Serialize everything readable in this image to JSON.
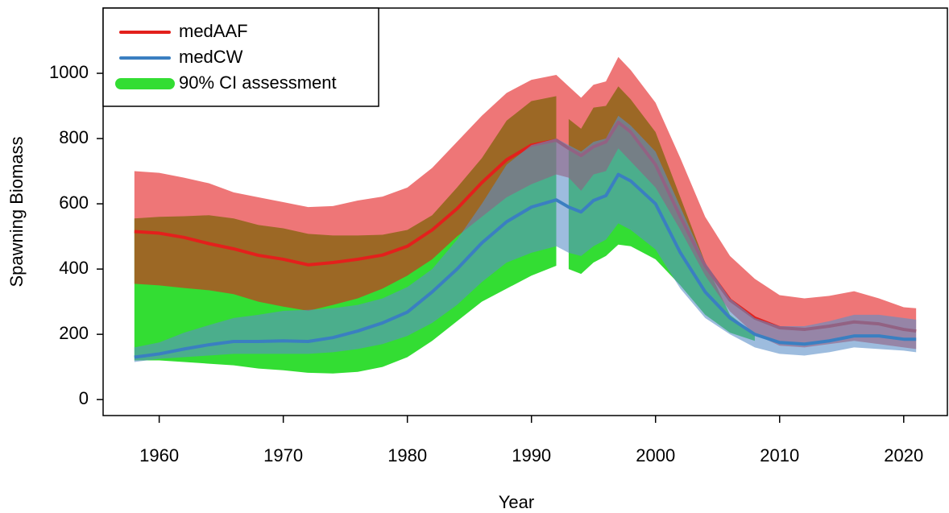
{
  "chart_data": {
    "type": "line",
    "xlabel": "Year",
    "ylabel": "Spawning Biomass",
    "x": [
      1958,
      1960,
      1962,
      1964,
      1966,
      1968,
      1970,
      1972,
      1974,
      1976,
      1978,
      1980,
      1982,
      1984,
      1986,
      1988,
      1990,
      1992,
      1993,
      1994,
      1995,
      1996,
      1997,
      1998,
      2000,
      2002,
      2004,
      2006,
      2008,
      2010,
      2012,
      2014,
      2016,
      2018,
      2020,
      2021
    ],
    "xlim": [
      1955.48,
      2023.52
    ],
    "xticks": [
      1960,
      1970,
      1980,
      1990,
      2000,
      2010,
      2020
    ],
    "ylim": [
      -49,
      1200
    ],
    "yticks": [
      0,
      200,
      400,
      600,
      800,
      1000
    ],
    "legend": "top-left",
    "series": [
      {
        "name": "medAAF",
        "color": "#e3201c",
        "band_color": "#e31a1c",
        "band_opacity": 0.6,
        "values": [
          515,
          510,
          497,
          478,
          462,
          442,
          430,
          413,
          420,
          430,
          443,
          470,
          520,
          585,
          665,
          735,
          780,
          795,
          770,
          748,
          775,
          790,
          850,
          820,
          720,
          560,
          410,
          305,
          250,
          220,
          215,
          225,
          238,
          232,
          215,
          210
        ],
        "upper": [
          700,
          695,
          680,
          663,
          635,
          620,
          605,
          590,
          593,
          610,
          622,
          650,
          710,
          790,
          870,
          940,
          980,
          995,
          960,
          925,
          965,
          975,
          1050,
          1010,
          910,
          740,
          560,
          440,
          370,
          320,
          310,
          318,
          332,
          310,
          283,
          280
        ],
        "lower": [
          355,
          350,
          342,
          335,
          323,
          300,
          285,
          272,
          290,
          310,
          340,
          380,
          430,
          500,
          560,
          620,
          660,
          690,
          680,
          640,
          690,
          700,
          770,
          730,
          650,
          520,
          380,
          270,
          200,
          165,
          160,
          170,
          180,
          170,
          160,
          155
        ]
      },
      {
        "name": "medCW",
        "color": "#3a7fc1",
        "band_color": "#5b8fc8",
        "band_opacity": 0.6,
        "values": [
          130,
          140,
          155,
          168,
          178,
          178,
          180,
          178,
          190,
          210,
          235,
          268,
          330,
          400,
          480,
          545,
          590,
          612,
          590,
          575,
          610,
          625,
          690,
          670,
          600,
          450,
          330,
          250,
          200,
          175,
          170,
          180,
          195,
          195,
          185,
          185
        ],
        "upper": [
          160,
          175,
          205,
          228,
          250,
          260,
          272,
          275,
          280,
          290,
          310,
          345,
          400,
          490,
          600,
          720,
          780,
          800,
          780,
          760,
          790,
          800,
          870,
          840,
          760,
          590,
          420,
          310,
          250,
          225,
          225,
          240,
          260,
          260,
          250,
          245
        ],
        "lower": [
          115,
          125,
          130,
          135,
          140,
          140,
          140,
          140,
          145,
          155,
          170,
          195,
          235,
          290,
          360,
          420,
          450,
          470,
          450,
          440,
          470,
          490,
          540,
          520,
          460,
          340,
          250,
          200,
          160,
          140,
          135,
          145,
          160,
          155,
          150,
          145
        ]
      },
      {
        "name": "90% CI assessment",
        "color": "#33dd33",
        "x": [
          1958,
          1960,
          1962,
          1964,
          1966,
          1968,
          1970,
          1972,
          1974,
          1976,
          1978,
          1980,
          1982,
          1984,
          1986,
          1988,
          1990,
          1992,
          1992.5,
          1993,
          1994,
          1995,
          1996,
          1997,
          1998,
          2000,
          2002,
          2004,
          2006,
          2008
        ],
        "upper": [
          555,
          560,
          562,
          565,
          555,
          535,
          525,
          508,
          503,
          503,
          505,
          520,
          565,
          650,
          740,
          855,
          915,
          930,
          null,
          860,
          830,
          895,
          900,
          960,
          920,
          820,
          620,
          420,
          260,
          200
        ],
        "lower": [
          120,
          120,
          115,
          110,
          105,
          95,
          90,
          82,
          80,
          85,
          100,
          130,
          180,
          240,
          300,
          340,
          380,
          410,
          null,
          400,
          385,
          420,
          440,
          475,
          470,
          430,
          350,
          260,
          205,
          180
        ]
      }
    ]
  }
}
